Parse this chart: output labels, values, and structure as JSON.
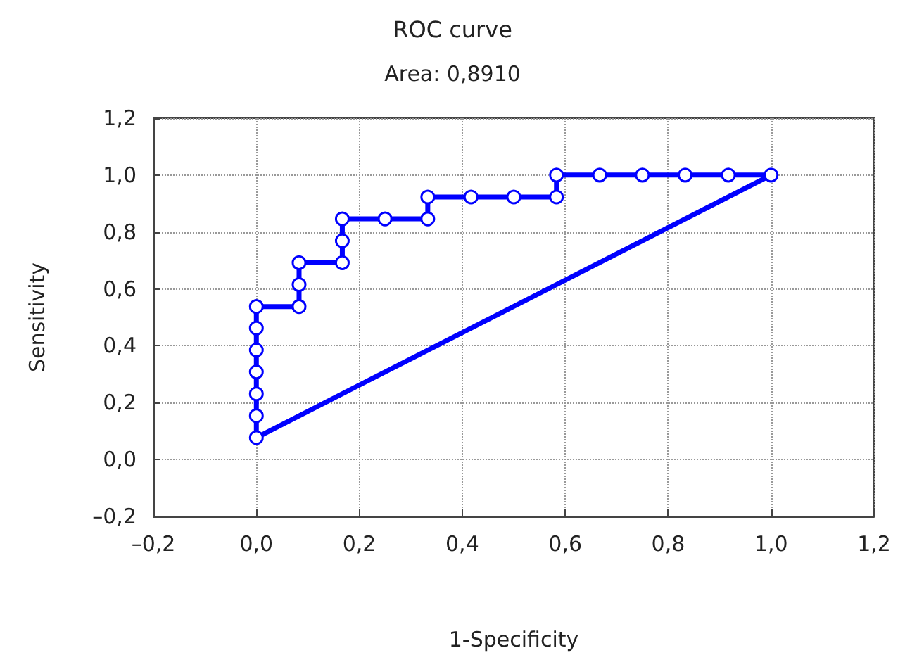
{
  "chart_data": {
    "type": "line",
    "title": "ROC curve",
    "subtitle": "Area: 0,8910",
    "xlabel": "1-Specificity",
    "ylabel": "Sensitivity",
    "series": [
      {
        "color": "#0000ff",
        "marker": "circle",
        "x": [
          0,
          0,
          0,
          0,
          0,
          0,
          0,
          0.083,
          0.083,
          0.083,
          0.167,
          0.167,
          0.167,
          0.25,
          0.333,
          0.333,
          0.417,
          0.5,
          0.583,
          0.583,
          0.667,
          0.75,
          0.833,
          0.917,
          1
        ],
        "values": [
          0.077,
          0.154,
          0.231,
          0.308,
          0.385,
          0.462,
          0.538,
          0.538,
          0.615,
          0.692,
          0.692,
          0.769,
          0.846,
          0.846,
          0.846,
          0.923,
          0.923,
          0.923,
          0.923,
          1,
          1,
          1,
          1,
          1,
          1
        ]
      },
      {
        "color": "#0000ff",
        "marker": "none",
        "x": [
          0,
          1
        ],
        "values": [
          0.077,
          1
        ]
      }
    ],
    "xlim": [
      -0.2,
      1.2
    ],
    "xticks": [
      {
        "value": -0.2,
        "label": "–0,2"
      },
      {
        "value": 0,
        "label": "0,0"
      },
      {
        "value": 0.2,
        "label": "0,2"
      },
      {
        "value": 0.4,
        "label": "0,4"
      },
      {
        "value": 0.6,
        "label": "0,6"
      },
      {
        "value": 0.8,
        "label": "0,8"
      },
      {
        "value": 1,
        "label": "1,0"
      },
      {
        "value": 1.2,
        "label": "1,2"
      }
    ],
    "ylim": [
      -0.2,
      1.2
    ],
    "yticks": [
      {
        "value": -0.2,
        "label": "–0,2"
      },
      {
        "value": 0,
        "label": "0,0"
      },
      {
        "value": 0.2,
        "label": "0,2"
      },
      {
        "value": 0.4,
        "label": "0,4"
      },
      {
        "value": 0.6,
        "label": "0,6"
      },
      {
        "value": 0.8,
        "label": "0,8"
      },
      {
        "value": 1,
        "label": "1,0"
      },
      {
        "value": 1.2,
        "label": "1,2"
      }
    ],
    "grid": true,
    "line_style": "solid"
  }
}
